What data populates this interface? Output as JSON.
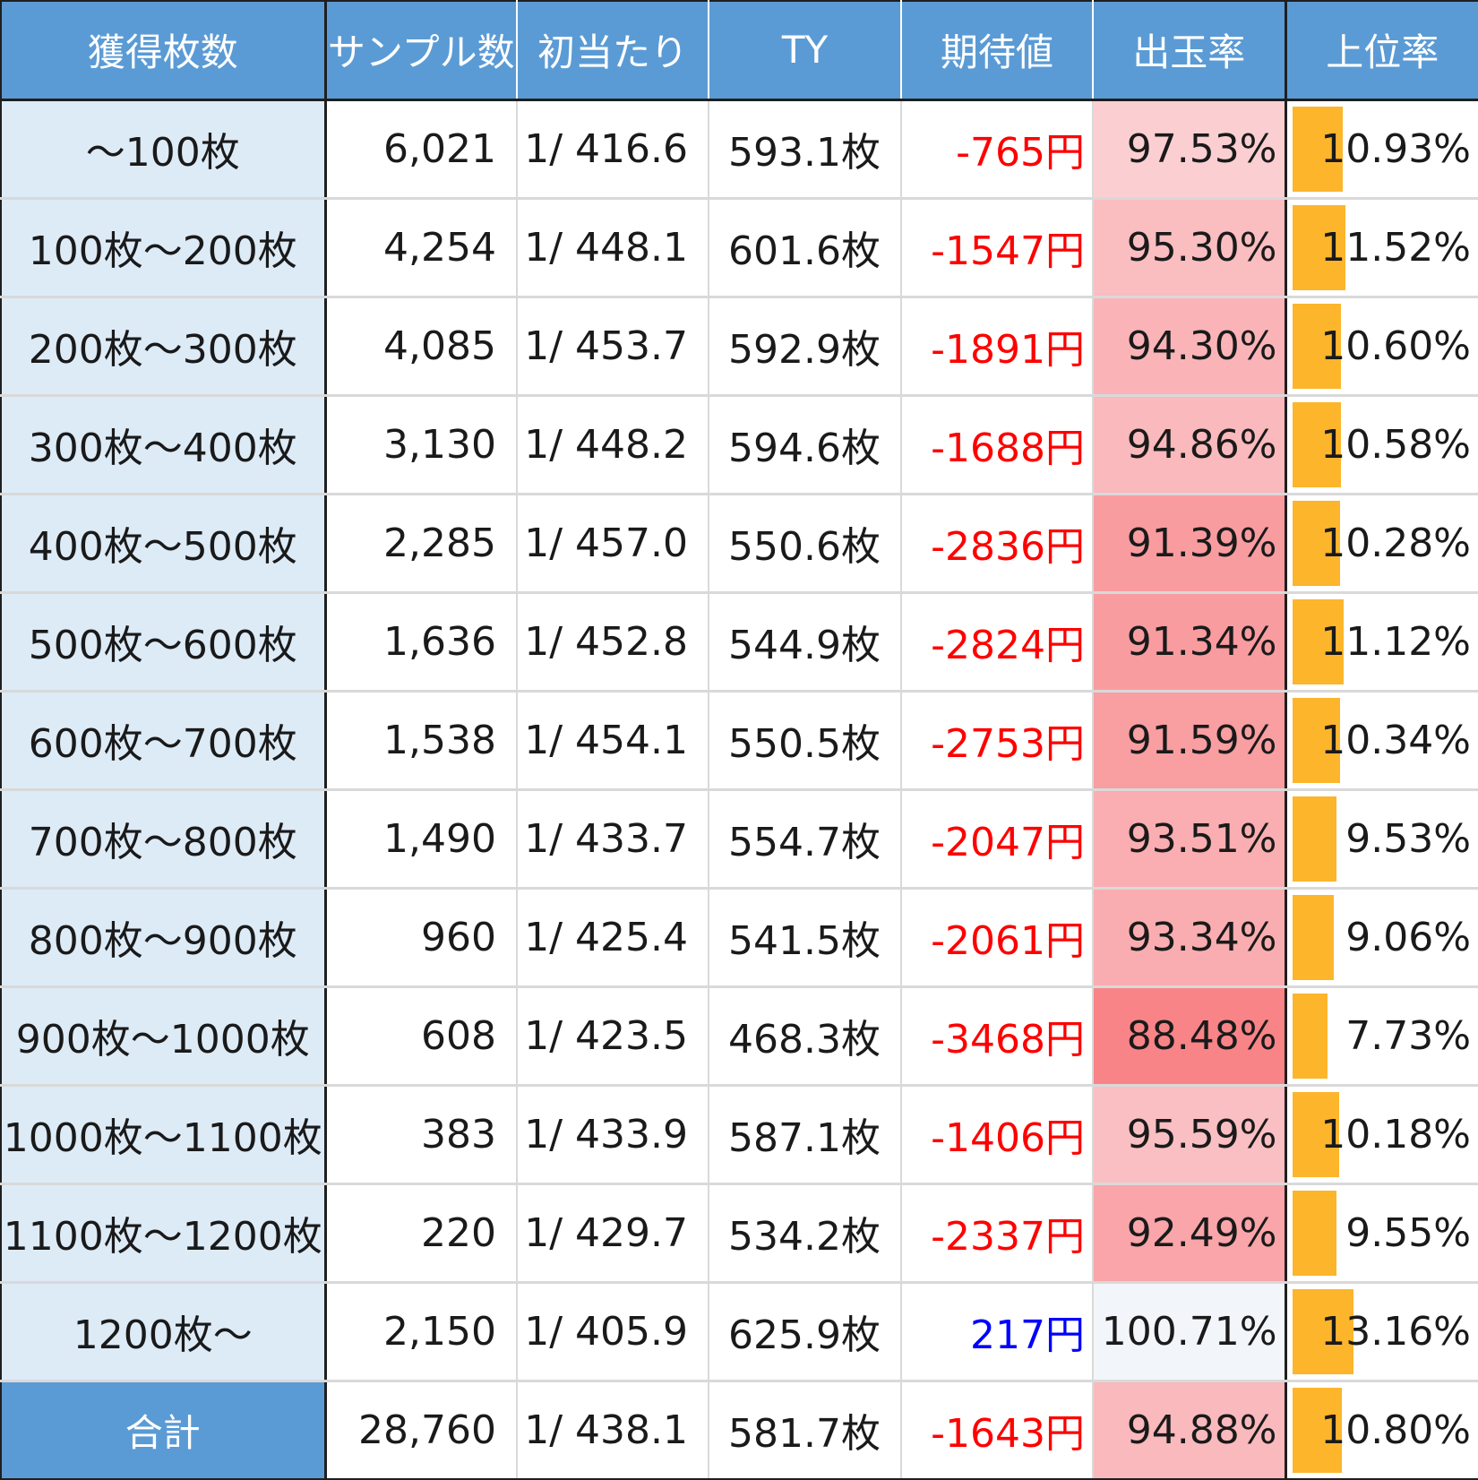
{
  "headers": {
    "range": "獲得枚数",
    "samples": "サンプル数",
    "first_hit": "初当たり",
    "ty": "TY",
    "expected_value": "期待値",
    "payout_rate": "出玉率",
    "top_rate": "上位率"
  },
  "colors": {
    "header_bg": "#5b9bd5",
    "range_bg": "#ddebf7",
    "negative": "#ff0000",
    "positive": "#0000ff",
    "bar": "#fdb52c"
  },
  "rows": [
    {
      "range": "～100枚",
      "samples": "6,021",
      "first_hit": "1/ 416.6",
      "ty": "593.1枚",
      "ev": "-765円",
      "ev_value": -765,
      "payout": "97.53%",
      "payout_value": 97.53,
      "top": "10.93%",
      "top_value": 10.93
    },
    {
      "range": "100枚～200枚",
      "samples": "4,254",
      "first_hit": "1/ 448.1",
      "ty": "601.6枚",
      "ev": "-1547円",
      "ev_value": -1547,
      "payout": "95.30%",
      "payout_value": 95.3,
      "top": "11.52%",
      "top_value": 11.52
    },
    {
      "range": "200枚～300枚",
      "samples": "4,085",
      "first_hit": "1/ 453.7",
      "ty": "592.9枚",
      "ev": "-1891円",
      "ev_value": -1891,
      "payout": "94.30%",
      "payout_value": 94.3,
      "top": "10.60%",
      "top_value": 10.6
    },
    {
      "range": "300枚～400枚",
      "samples": "3,130",
      "first_hit": "1/ 448.2",
      "ty": "594.6枚",
      "ev": "-1688円",
      "ev_value": -1688,
      "payout": "94.86%",
      "payout_value": 94.86,
      "top": "10.58%",
      "top_value": 10.58
    },
    {
      "range": "400枚～500枚",
      "samples": "2,285",
      "first_hit": "1/ 457.0",
      "ty": "550.6枚",
      "ev": "-2836円",
      "ev_value": -2836,
      "payout": "91.39%",
      "payout_value": 91.39,
      "top": "10.28%",
      "top_value": 10.28
    },
    {
      "range": "500枚～600枚",
      "samples": "1,636",
      "first_hit": "1/ 452.8",
      "ty": "544.9枚",
      "ev": "-2824円",
      "ev_value": -2824,
      "payout": "91.34%",
      "payout_value": 91.34,
      "top": "11.12%",
      "top_value": 11.12
    },
    {
      "range": "600枚～700枚",
      "samples": "1,538",
      "first_hit": "1/ 454.1",
      "ty": "550.5枚",
      "ev": "-2753円",
      "ev_value": -2753,
      "payout": "91.59%",
      "payout_value": 91.59,
      "top": "10.34%",
      "top_value": 10.34
    },
    {
      "range": "700枚～800枚",
      "samples": "1,490",
      "first_hit": "1/ 433.7",
      "ty": "554.7枚",
      "ev": "-2047円",
      "ev_value": -2047,
      "payout": "93.51%",
      "payout_value": 93.51,
      "top": "9.53%",
      "top_value": 9.53
    },
    {
      "range": "800枚～900枚",
      "samples": "960",
      "first_hit": "1/ 425.4",
      "ty": "541.5枚",
      "ev": "-2061円",
      "ev_value": -2061,
      "payout": "93.34%",
      "payout_value": 93.34,
      "top": "9.06%",
      "top_value": 9.06
    },
    {
      "range": "900枚～1000枚",
      "samples": "608",
      "first_hit": "1/ 423.5",
      "ty": "468.3枚",
      "ev": "-3468円",
      "ev_value": -3468,
      "payout": "88.48%",
      "payout_value": 88.48,
      "top": "7.73%",
      "top_value": 7.73
    },
    {
      "range": "1000枚～1100枚",
      "samples": "383",
      "first_hit": "1/ 433.9",
      "ty": "587.1枚",
      "ev": "-1406円",
      "ev_value": -1406,
      "payout": "95.59%",
      "payout_value": 95.59,
      "top": "10.18%",
      "top_value": 10.18
    },
    {
      "range": "1100枚～1200枚",
      "samples": "220",
      "first_hit": "1/ 429.7",
      "ty": "534.2枚",
      "ev": "-2337円",
      "ev_value": -2337,
      "payout": "92.49%",
      "payout_value": 92.49,
      "top": "9.55%",
      "top_value": 9.55
    },
    {
      "range": "1200枚～",
      "samples": "2,150",
      "first_hit": "1/ 405.9",
      "ty": "625.9枚",
      "ev": "217円",
      "ev_value": 217,
      "payout": "100.71%",
      "payout_value": 100.71,
      "top": "13.16%",
      "top_value": 13.16
    }
  ],
  "total": {
    "range": "合計",
    "samples": "28,760",
    "first_hit": "1/ 438.1",
    "ty": "581.7枚",
    "ev": "-1643円",
    "ev_value": -1643,
    "payout": "94.88%",
    "payout_value": 94.88,
    "top": "10.80%",
    "top_value": 10.8
  }
}
